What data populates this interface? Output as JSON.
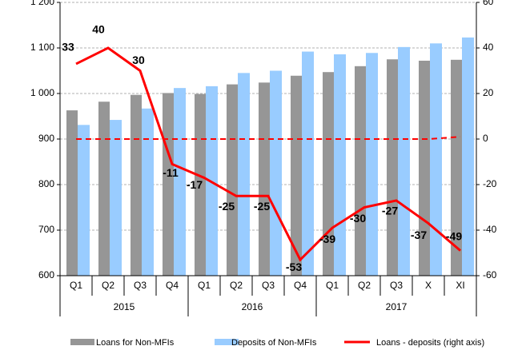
{
  "chart_data": {
    "type": "bar-line",
    "categories": [
      "Q1",
      "Q2",
      "Q3",
      "Q4",
      "Q1",
      "Q2",
      "Q3",
      "Q4",
      "Q1",
      "Q2",
      "Q3",
      "X",
      "XI"
    ],
    "groups": [
      {
        "label": "2015",
        "span": [
          0,
          3
        ]
      },
      {
        "label": "2016",
        "span": [
          4,
          7
        ]
      },
      {
        "label": "2017",
        "span": [
          8,
          12
        ]
      }
    ],
    "series": [
      {
        "name": "Loans for Non-MFIs",
        "color": "#969696",
        "values": [
          963,
          982,
          997,
          1001,
          999,
          1020,
          1024,
          1039,
          1047,
          1060,
          1075,
          1072,
          1074
        ]
      },
      {
        "name": "Deposits of Non-MFIs",
        "color": "#99ccff",
        "values": [
          931,
          942,
          967,
          1012,
          1016,
          1045,
          1050,
          1092,
          1086,
          1089,
          1102,
          1110,
          1123
        ]
      },
      {
        "name": "Loans  - deposits (right axis)",
        "color": "#ff0000",
        "axis": "y2",
        "values": [
          33,
          40,
          30,
          -11,
          -17,
          -25,
          -25,
          -53,
          -39,
          -30,
          -27,
          -37,
          -49
        ]
      },
      {
        "color": "#ff0000",
        "axis": "y2",
        "dashed": true,
        "values": [
          0,
          0,
          0,
          0,
          0,
          0,
          0,
          0,
          0,
          0,
          0,
          0,
          1
        ]
      }
    ],
    "ylim": [
      600,
      1200
    ],
    "yticks": [
      600,
      700,
      800,
      900,
      {
        "value": 1000,
        "label": "1 000"
      },
      {
        "value": 1100,
        "label": "1 100"
      },
      {
        "value": 1200,
        "label": "1 200"
      }
    ],
    "y2lim": [
      -60,
      60
    ],
    "y2ticks": [
      -60,
      -40,
      -20,
      0,
      20,
      40,
      60
    ],
    "grid": true
  }
}
